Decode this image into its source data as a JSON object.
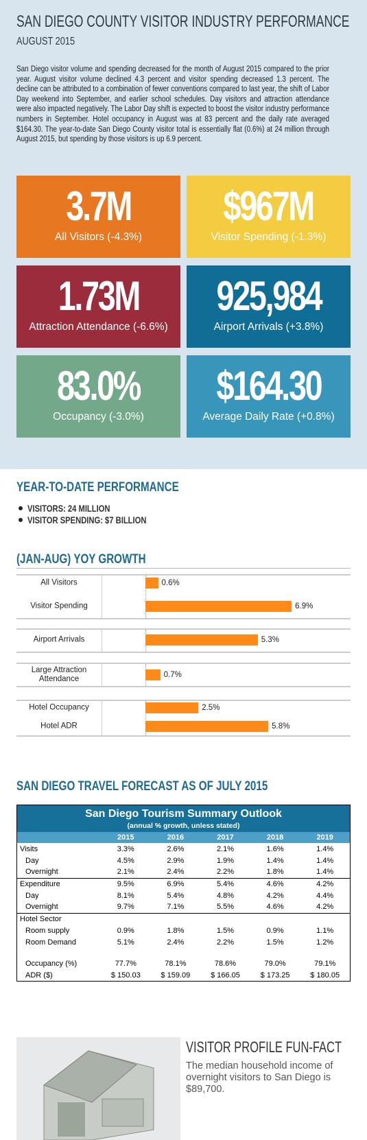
{
  "header": {
    "title": "SAN DIEGO COUNTY VISITOR INDUSTRY PERFORMANCE",
    "subtitle": "AUGUST 2015",
    "intro": "San Diego visitor volume and spending decreased for the month of August 2015 compared to the prior year. August visitor volume declined 4.3 percent and visitor spending decreased 1.3 percent. The decline can be attributed to a combination of fewer conventions compared to last year, the shift of Labor Day weekend into September, and earlier school schedules. Day visitors and attraction attendance were also impacted negatively. The Labor Day shift is expected to boost the visitor industry performance numbers in September. Hotel occupancy in August was at 83 percent and the daily rate averaged $164.30. The year-to-date San Diego County visitor total is essentially flat (0.6%) at 24 million through August 2015, but spending by those visitors is up 6.9 percent."
  },
  "tiles": [
    {
      "value": "3.7M",
      "label": "All Visitors (-4.3%)",
      "color": "#e87722"
    },
    {
      "value": "$967M",
      "label": "Visitor Spending (-1.3%)",
      "color": "#f4cc3f"
    },
    {
      "value": "1.73M",
      "label": "Attraction Attendance (-6.6%)",
      "color": "#9b2c3b"
    },
    {
      "value": "925,984",
      "label": "Airport Arrivals (+3.8%)",
      "color": "#0f6d96"
    },
    {
      "value": "83.0%",
      "label": "Occupancy (-3.0%)",
      "color": "#73a98a"
    },
    {
      "value": "$164.30",
      "label": "Average Daily Rate (+0.8%)",
      "color": "#3896bb"
    }
  ],
  "ytd": {
    "heading": "YEAR-TO-DATE PERFORMANCE",
    "items": [
      "VISITORS: 24 MILLION",
      "VISITOR SPENDING: $7 BILLION"
    ]
  },
  "chart_data": {
    "type": "bar",
    "title": "(JAN-AUG) YOY GROWTH",
    "categories": [
      "All Visitors",
      "Visitor Spending",
      "Airport Arrivals",
      "Large Attraction Attendance",
      "Hotel Occupancy",
      "Hotel ADR"
    ],
    "values": [
      0.6,
      6.9,
      5.3,
      0.7,
      2.5,
      5.8
    ],
    "value_labels": [
      "0.6%",
      "6.9%",
      "5.3%",
      "0.7%",
      "2.5%",
      "5.8%"
    ],
    "color": "#ff8a17",
    "xlim": [
      0,
      9
    ]
  },
  "forecast": {
    "heading": "SAN DIEGO TRAVEL FORECAST AS OF JULY 2015",
    "table": {
      "title": "San Diego Tourism Summary Outlook",
      "subtitle": "(annual % growth, unless stated)",
      "columns": [
        "2015",
        "2016",
        "2017",
        "2018",
        "2019"
      ],
      "rows": [
        [
          "Visits",
          "3.3%",
          "2.6%",
          "2.1%",
          "1.6%",
          "1.4%"
        ],
        [
          "Day",
          "4.5%",
          "2.9%",
          "1.9%",
          "1.4%",
          "1.4%"
        ],
        [
          "Overnight",
          "2.1%",
          "2.4%",
          "2.2%",
          "1.8%",
          "1.4%"
        ],
        [
          "Expenditure",
          "9.5%",
          "6.9%",
          "5.4%",
          "4.6%",
          "4.2%"
        ],
        [
          "Day",
          "8.1%",
          "5.4%",
          "4.8%",
          "4.2%",
          "4.4%"
        ],
        [
          "Overnight",
          "9.7%",
          "7.1%",
          "5.5%",
          "4.6%",
          "4.2%"
        ],
        [
          "Hotel Sector"
        ],
        [
          "Room supply",
          "0.9%",
          "1.8%",
          "1.5%",
          "0.9%",
          "1.1%"
        ],
        [
          "Room Demand",
          "5.1%",
          "2.4%",
          "2.2%",
          "1.5%",
          "1.2%"
        ],
        [
          "Occupancy (%)",
          "77.7%",
          "78.1%",
          "78.6%",
          "79.0%",
          "79.1%"
        ],
        [
          "ADR ($)",
          "$ 150.03",
          "$ 159.09",
          "$ 166.05",
          "$ 173.25",
          "$ 180.05"
        ]
      ]
    }
  },
  "funfact": {
    "title": "VISITOR PROFILE FUN-FACT",
    "text": "The median household income of overnight visitors to San Diego is $89,700."
  }
}
